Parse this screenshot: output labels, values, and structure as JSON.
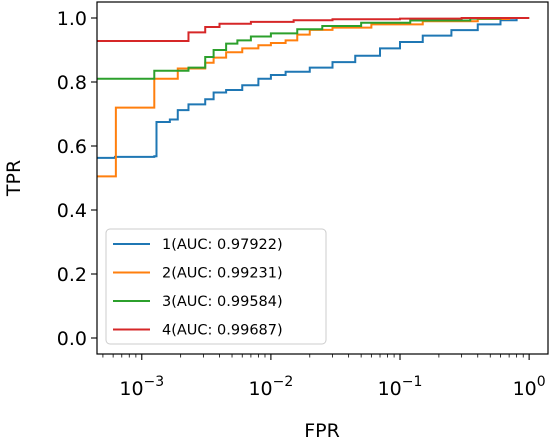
{
  "chart_data": {
    "type": "line",
    "xlabel": "FPR",
    "ylabel": "TPR",
    "xscale": "log",
    "xlim": [
      0.00045,
      1.4
    ],
    "ylim": [
      -0.05,
      1.05
    ],
    "x_ticks": [
      0.001,
      0.01,
      0.1,
      1
    ],
    "x_tick_labels": [
      {
        "base": "10",
        "exp": "−3"
      },
      {
        "base": "10",
        "exp": "−2"
      },
      {
        "base": "10",
        "exp": "−1"
      },
      {
        "base": "10",
        "exp": "0"
      }
    ],
    "y_ticks": [
      0.0,
      0.2,
      0.4,
      0.6,
      0.8,
      1.0
    ],
    "y_tick_labels": [
      "0.0",
      "0.2",
      "0.4",
      "0.6",
      "0.8",
      "1.0"
    ],
    "grid": false,
    "legend_position": "lower-left",
    "series": [
      {
        "name": "1(AUC: 0.97922)",
        "color": "#1f77b4",
        "points": [
          [
            0.00045,
            0.563
          ],
          [
            0.00062,
            0.563
          ],
          [
            0.00062,
            0.566
          ],
          [
            0.00125,
            0.566
          ],
          [
            0.00125,
            0.568
          ],
          [
            0.0013,
            0.568
          ],
          [
            0.0013,
            0.675
          ],
          [
            0.00165,
            0.675
          ],
          [
            0.00165,
            0.683
          ],
          [
            0.0019,
            0.683
          ],
          [
            0.0019,
            0.712
          ],
          [
            0.0023,
            0.712
          ],
          [
            0.0023,
            0.73
          ],
          [
            0.0031,
            0.73
          ],
          [
            0.0031,
            0.746
          ],
          [
            0.0036,
            0.746
          ],
          [
            0.0036,
            0.767
          ],
          [
            0.0045,
            0.767
          ],
          [
            0.0045,
            0.775
          ],
          [
            0.006,
            0.775
          ],
          [
            0.006,
            0.79
          ],
          [
            0.008,
            0.79
          ],
          [
            0.008,
            0.81
          ],
          [
            0.01,
            0.81
          ],
          [
            0.01,
            0.822
          ],
          [
            0.013,
            0.822
          ],
          [
            0.013,
            0.832
          ],
          [
            0.02,
            0.832
          ],
          [
            0.02,
            0.845
          ],
          [
            0.03,
            0.845
          ],
          [
            0.03,
            0.862
          ],
          [
            0.045,
            0.862
          ],
          [
            0.045,
            0.882
          ],
          [
            0.07,
            0.882
          ],
          [
            0.07,
            0.905
          ],
          [
            0.1,
            0.905
          ],
          [
            0.1,
            0.925
          ],
          [
            0.15,
            0.925
          ],
          [
            0.15,
            0.945
          ],
          [
            0.25,
            0.945
          ],
          [
            0.25,
            0.962
          ],
          [
            0.4,
            0.962
          ],
          [
            0.4,
            0.98
          ],
          [
            0.6,
            0.98
          ],
          [
            0.6,
            0.993
          ],
          [
            0.8,
            0.993
          ],
          [
            0.8,
            1.0
          ],
          [
            1.0,
            1.0
          ]
        ]
      },
      {
        "name": "2(AUC: 0.99231)",
        "color": "#ff7f0e",
        "points": [
          [
            0.00045,
            0.505
          ],
          [
            0.00063,
            0.505
          ],
          [
            0.00063,
            0.72
          ],
          [
            0.00125,
            0.72
          ],
          [
            0.00125,
            0.81
          ],
          [
            0.0019,
            0.81
          ],
          [
            0.0019,
            0.842
          ],
          [
            0.0031,
            0.842
          ],
          [
            0.0031,
            0.86
          ],
          [
            0.0036,
            0.86
          ],
          [
            0.0036,
            0.876
          ],
          [
            0.0045,
            0.876
          ],
          [
            0.0045,
            0.893
          ],
          [
            0.006,
            0.893
          ],
          [
            0.006,
            0.905
          ],
          [
            0.008,
            0.905
          ],
          [
            0.008,
            0.915
          ],
          [
            0.01,
            0.915
          ],
          [
            0.01,
            0.922
          ],
          [
            0.013,
            0.922
          ],
          [
            0.013,
            0.93
          ],
          [
            0.016,
            0.93
          ],
          [
            0.016,
            0.948
          ],
          [
            0.02,
            0.948
          ],
          [
            0.02,
            0.963
          ],
          [
            0.03,
            0.963
          ],
          [
            0.03,
            0.97
          ],
          [
            0.06,
            0.97
          ],
          [
            0.06,
            0.98
          ],
          [
            0.15,
            0.98
          ],
          [
            0.15,
            0.99
          ],
          [
            0.4,
            0.99
          ],
          [
            0.4,
            0.997
          ],
          [
            0.7,
            0.997
          ],
          [
            0.7,
            1.0
          ],
          [
            1.0,
            1.0
          ]
        ]
      },
      {
        "name": "3(AUC: 0.99584)",
        "color": "#2ca02c",
        "points": [
          [
            0.00045,
            0.81
          ],
          [
            0.00125,
            0.81
          ],
          [
            0.00125,
            0.835
          ],
          [
            0.0023,
            0.835
          ],
          [
            0.0023,
            0.845
          ],
          [
            0.0031,
            0.845
          ],
          [
            0.0031,
            0.878
          ],
          [
            0.0036,
            0.878
          ],
          [
            0.0036,
            0.9
          ],
          [
            0.0045,
            0.9
          ],
          [
            0.0045,
            0.92
          ],
          [
            0.0055,
            0.92
          ],
          [
            0.0055,
            0.93
          ],
          [
            0.007,
            0.93
          ],
          [
            0.007,
            0.942
          ],
          [
            0.01,
            0.942
          ],
          [
            0.01,
            0.952
          ],
          [
            0.016,
            0.952
          ],
          [
            0.016,
            0.965
          ],
          [
            0.025,
            0.965
          ],
          [
            0.025,
            0.975
          ],
          [
            0.05,
            0.975
          ],
          [
            0.05,
            0.985
          ],
          [
            0.12,
            0.985
          ],
          [
            0.12,
            0.992
          ],
          [
            0.35,
            0.992
          ],
          [
            0.35,
            0.998
          ],
          [
            0.6,
            0.998
          ],
          [
            0.6,
            1.0
          ],
          [
            1.0,
            1.0
          ]
        ]
      },
      {
        "name": "4(AUC: 0.99687)",
        "color": "#d62728",
        "points": [
          [
            0.00045,
            0.928
          ],
          [
            0.0023,
            0.928
          ],
          [
            0.0023,
            0.955
          ],
          [
            0.0031,
            0.955
          ],
          [
            0.0031,
            0.972
          ],
          [
            0.004,
            0.972
          ],
          [
            0.004,
            0.982
          ],
          [
            0.007,
            0.982
          ],
          [
            0.007,
            0.988
          ],
          [
            0.015,
            0.988
          ],
          [
            0.015,
            0.993
          ],
          [
            0.03,
            0.993
          ],
          [
            0.03,
            0.996
          ],
          [
            0.1,
            0.996
          ],
          [
            0.1,
            0.998
          ],
          [
            0.3,
            0.998
          ],
          [
            0.3,
            1.0
          ],
          [
            1.0,
            1.0
          ]
        ]
      }
    ]
  }
}
